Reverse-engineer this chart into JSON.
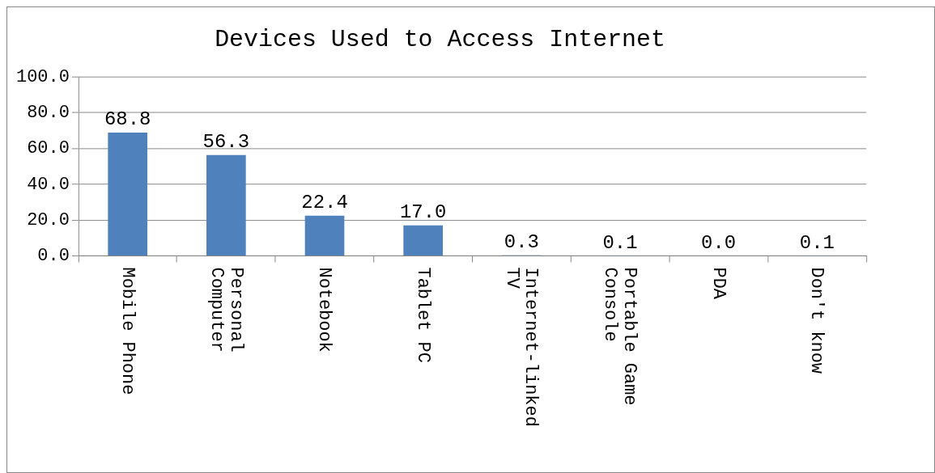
{
  "chart_data": {
    "type": "bar",
    "title": "Devices Used to Access Internet",
    "categories": [
      "Mobile Phone",
      "Personal Computer",
      "Notebook",
      "Tablet PC",
      "Internet-linked TV",
      "Portable Game Console",
      "PDA",
      "Don't know"
    ],
    "values": [
      68.8,
      56.3,
      22.4,
      17.0,
      0.3,
      0.1,
      0.0,
      0.1
    ],
    "value_labels": [
      "68.8",
      "56.3",
      "22.4",
      "17.0",
      "0.3",
      "0.1",
      "0.0",
      "0.1"
    ],
    "color": "#4f81bd",
    "ylim": [
      0,
      100
    ],
    "yticks": [
      {
        "value": 0,
        "label": "0.0"
      },
      {
        "value": 20,
        "label": "20.0"
      },
      {
        "value": 40,
        "label": "40.0"
      },
      {
        "value": 60,
        "label": "60.0"
      },
      {
        "value": 80,
        "label": "80.0"
      },
      {
        "value": 100,
        "label": "100.0"
      }
    ],
    "grid": "y",
    "legend": false
  }
}
